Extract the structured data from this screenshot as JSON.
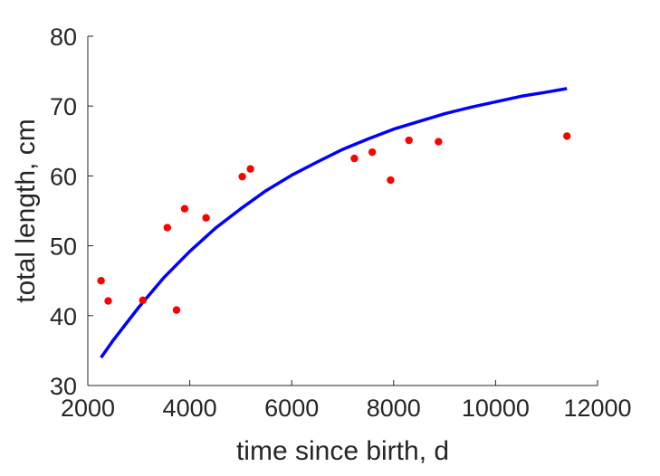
{
  "chart_data": {
    "type": "scatter",
    "title": "",
    "xlabel": "time since birth, d",
    "ylabel": "total length, cm",
    "xlim": [
      2000,
      12000
    ],
    "ylim": [
      30,
      80
    ],
    "xticks": [
      2000,
      4000,
      6000,
      8000,
      10000,
      12000
    ],
    "yticks": [
      30,
      40,
      50,
      60,
      70,
      80
    ],
    "grid": false,
    "legend": "none",
    "series": [
      {
        "kind": "scatter",
        "color": "#ff0000",
        "points": [
          [
            2260,
            45.0
          ],
          [
            2400,
            42.1
          ],
          [
            3080,
            42.2
          ],
          [
            3560,
            52.6
          ],
          [
            3740,
            40.8
          ],
          [
            3900,
            55.3
          ],
          [
            4320,
            54.0
          ],
          [
            5030,
            59.9
          ],
          [
            5190,
            61.0
          ],
          [
            7230,
            62.5
          ],
          [
            7580,
            63.4
          ],
          [
            7940,
            59.4
          ],
          [
            8300,
            65.1
          ],
          [
            8880,
            64.9
          ],
          [
            11400,
            65.7
          ]
        ]
      },
      {
        "kind": "line",
        "color": "#0000ff",
        "points": [
          [
            2260,
            34.0
          ],
          [
            2500,
            36.5
          ],
          [
            3000,
            41.2
          ],
          [
            3500,
            45.5
          ],
          [
            4000,
            49.2
          ],
          [
            4500,
            52.5
          ],
          [
            5000,
            55.3
          ],
          [
            5500,
            57.9
          ],
          [
            6000,
            60.1
          ],
          [
            6500,
            62.0
          ],
          [
            7000,
            63.8
          ],
          [
            7500,
            65.3
          ],
          [
            8000,
            66.7
          ],
          [
            8500,
            67.8
          ],
          [
            9000,
            68.9
          ],
          [
            9500,
            69.8
          ],
          [
            10000,
            70.6
          ],
          [
            10500,
            71.4
          ],
          [
            11000,
            72.0
          ],
          [
            11400,
            72.5
          ]
        ]
      }
    ]
  }
}
